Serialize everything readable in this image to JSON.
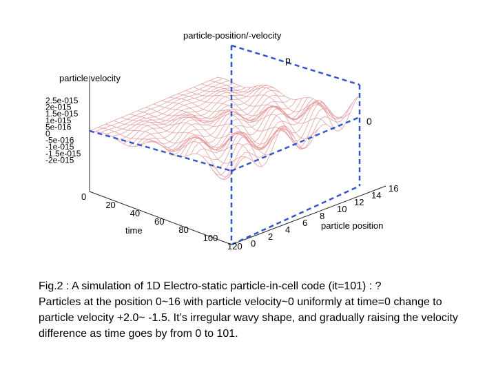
{
  "chart_data": {
    "type": "surface",
    "title": "particle-position/-velocity",
    "zlabel": "particle velocity",
    "xlabel": "time",
    "ylabel": "particle position",
    "x_ticks": [
      "0",
      "20",
      "40",
      "60",
      "80",
      "100",
      "120"
    ],
    "y_ticks": [
      "0",
      "2",
      "4",
      "6",
      "8",
      "10",
      "12",
      "14",
      "16"
    ],
    "z_ticks": [
      "2.5e-015",
      "2e-015",
      "1.5e-015",
      "1e-015",
      "5e-016",
      "0",
      "-5e-016",
      "-1e-015",
      "-1.5e-015",
      "-2e-015"
    ],
    "time_range": [
      0,
      101
    ],
    "position_range": [
      0,
      16
    ],
    "initial_velocity": 0,
    "final_velocity_range": [
      -1.5,
      2.0
    ],
    "surface_color": "#e8a0a0",
    "annotations": {
      "plane_top_label": "p",
      "plane_right_label": "0",
      "plane_color": "#3355cc"
    }
  },
  "caption": {
    "line1": "Fig.2 : A simulation of 1D Electro-static particle-in-cell code (it=101) :  ?",
    "line2": "Particles at the position 0~16 with particle velocity~0 uniformly at time=0 change to",
    "line3": "particle velocity +2.0~ -1.5. It’s irregular wavy shape, and gradually raising the velocity",
    "line4": "difference as  time goes by from 0 to 101."
  }
}
